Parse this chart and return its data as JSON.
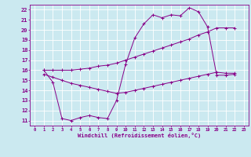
{
  "background_color": "#cbe9f0",
  "grid_color": "#ffffff",
  "line_color": "#880088",
  "marker": "+",
  "xlabel": "Windchill (Refroidissement éolien,°C)",
  "xlim": [
    -0.5,
    23.5
  ],
  "ylim": [
    10.5,
    22.5
  ],
  "yticks": [
    11,
    12,
    13,
    14,
    15,
    16,
    17,
    18,
    19,
    20,
    21,
    22
  ],
  "xticks": [
    0,
    1,
    2,
    3,
    4,
    5,
    6,
    7,
    8,
    9,
    10,
    11,
    12,
    13,
    14,
    15,
    16,
    17,
    18,
    19,
    20,
    21,
    22,
    23
  ],
  "curves": [
    {
      "x": [
        1,
        2,
        3,
        4,
        5,
        6,
        7,
        8,
        9,
        10,
        11,
        12,
        13,
        14,
        15,
        16,
        17,
        18,
        19,
        20,
        21,
        22
      ],
      "y": [
        16.0,
        16.0,
        16.0,
        16.0,
        16.1,
        16.2,
        16.4,
        16.5,
        16.7,
        17.0,
        17.3,
        17.6,
        17.9,
        18.2,
        18.5,
        18.8,
        19.1,
        19.5,
        19.8,
        20.2,
        20.2,
        20.2
      ]
    },
    {
      "x": [
        1,
        2,
        3,
        4,
        5,
        6,
        7,
        8,
        9,
        10,
        11,
        12,
        13,
        14,
        15,
        16,
        17,
        18,
        19,
        20,
        21,
        22
      ],
      "y": [
        16.0,
        14.8,
        11.2,
        11.0,
        11.3,
        11.5,
        11.3,
        11.2,
        13.0,
        16.6,
        19.2,
        20.6,
        21.5,
        21.2,
        21.5,
        21.4,
        22.2,
        21.8,
        20.3,
        15.5,
        15.5,
        15.6
      ]
    },
    {
      "x": [
        1,
        2,
        3,
        4,
        5,
        6,
        7,
        8,
        9,
        10,
        11,
        12,
        13,
        14,
        15,
        16,
        17,
        18,
        19,
        20,
        21,
        22
      ],
      "y": [
        15.6,
        15.3,
        15.0,
        14.7,
        14.5,
        14.3,
        14.1,
        13.9,
        13.7,
        13.8,
        14.0,
        14.2,
        14.4,
        14.6,
        14.8,
        15.0,
        15.2,
        15.4,
        15.6,
        15.8,
        15.7,
        15.7
      ]
    }
  ]
}
